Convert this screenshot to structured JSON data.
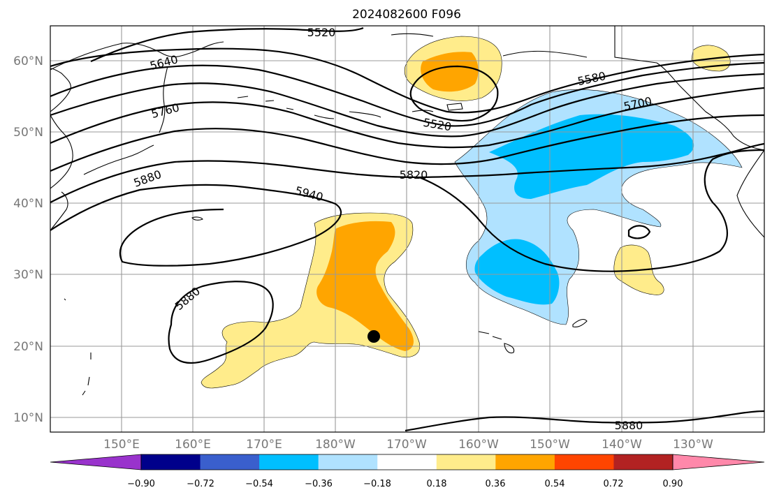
{
  "title": "2024082600 F096",
  "map": {
    "lat_labels": [
      "60°N",
      "50°N",
      "40°N",
      "30°N",
      "20°N",
      "10°N"
    ],
    "lon_labels": [
      "150°E",
      "160°E",
      "170°E",
      "180°W",
      "170°W",
      "160°W",
      "150°W",
      "140°W",
      "130°W"
    ],
    "contour_labels": [
      "5520",
      "5640",
      "5760",
      "5580",
      "5700",
      "5520",
      "5820",
      "5880",
      "5940",
      "5880",
      "5880"
    ],
    "marker": "filled-black-circle"
  },
  "colorbar": {
    "ticks": [
      "−0.90",
      "−0.72",
      "−0.54",
      "−0.36",
      "−0.18",
      "0.18",
      "0.36",
      "0.54",
      "0.72",
      "0.90"
    ],
    "colors": [
      "#9933cc",
      "#00008b",
      "#3a5fcd",
      "#00bfff",
      "#b0e2ff",
      "#ffffff",
      "#ffec8b",
      "#ffa500",
      "#ff4500",
      "#b22222",
      "#ff88aa"
    ]
  },
  "colors": {
    "light_blue": "#b0e2ff",
    "blue": "#00bfff",
    "yellow": "#ffec8b",
    "orange": "#ffa500"
  }
}
